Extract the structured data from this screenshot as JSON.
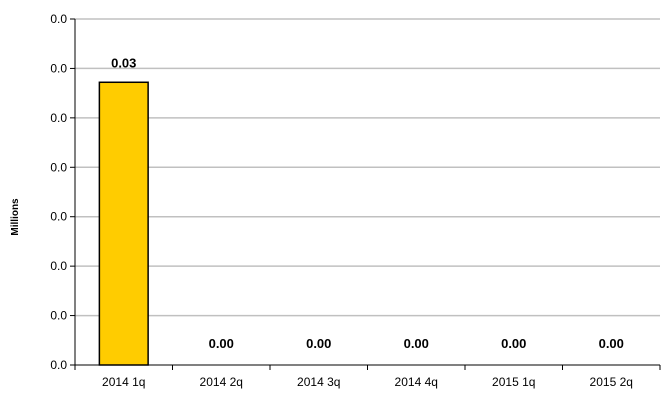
{
  "chart_data": {
    "type": "bar",
    "title": "",
    "xlabel": "",
    "ylabel": "Millions",
    "categories": [
      "2014 1q",
      "2014 2q",
      "2014 3q",
      "2014 4q",
      "2015 1q",
      "2015 2q"
    ],
    "values": [
      0.0286,
      0,
      0,
      0,
      0,
      0
    ],
    "data_labels": [
      "0.03",
      "0.00",
      "0.00",
      "0.00",
      "0.00",
      "0.00"
    ],
    "ylim": [
      0,
      0.035
    ],
    "y_ticks": [
      0,
      0.005,
      0.01,
      0.015,
      0.02,
      0.025,
      0.03,
      0.035
    ],
    "y_tick_labels": [
      "0.0",
      "0.0",
      "0.0",
      "0.0",
      "0.0",
      "0.0",
      "0.0",
      "0.0"
    ],
    "grid": true,
    "legend": "none",
    "colors": {
      "bar": "#FFCC00",
      "bar_edge": "#000000",
      "grid": "#C0C0C0",
      "axis": "#000000"
    }
  }
}
